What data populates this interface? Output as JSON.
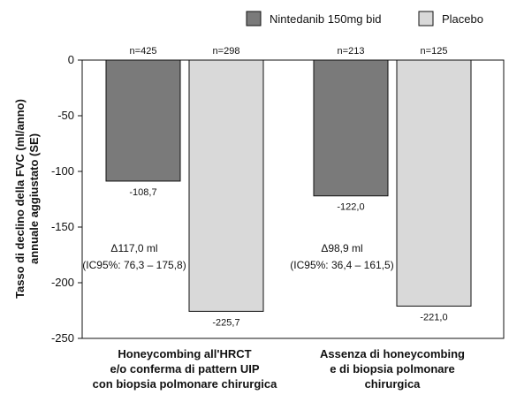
{
  "chart_data": {
    "type": "bar",
    "ylabel": "Tasso di declino della FVC (ml/anno) annuale aggiustato (SE)",
    "ylabel_lines": [
      "Tasso di declino della FVC (ml/anno)",
      "annuale aggiustato (SE)"
    ],
    "ylim": [
      -250,
      0
    ],
    "yticks": [
      0,
      -50,
      -100,
      -150,
      -200,
      -250
    ],
    "ytick_labels": [
      "0",
      "-50",
      "-100",
      "-150",
      "-200",
      "-250"
    ],
    "legend_position": "top-right",
    "series": [
      {
        "name": "Nintedanib 150mg bid",
        "color": "#7a7a7a",
        "values": [
          -108.7,
          -122.0
        ],
        "value_labels": [
          "-108,7",
          "-122,0"
        ],
        "n_labels": [
          "n=425",
          "n=213"
        ]
      },
      {
        "name": "Placebo",
        "color": "#d9d9d9",
        "values": [
          -225.7,
          -221.0
        ],
        "value_labels": [
          "-225,7",
          "-221,0"
        ],
        "n_labels": [
          "n=298",
          "n=125"
        ]
      }
    ],
    "categories": [
      {
        "lines": [
          "Honeycombing all'HRCT",
          "e/o conferma di pattern UIP",
          "con biopsia polmonare chirurgica"
        ]
      },
      {
        "lines": [
          "Assenza di honeycombing",
          "e di biopsia polmonare",
          "chirurgica"
        ]
      }
    ],
    "annotations": [
      {
        "lines": [
          "Δ117,0 ml",
          "(IC95%: 76,3 – 175,8)"
        ]
      },
      {
        "lines": [
          "Δ98,9 ml",
          "(IC95%: 36,4 – 161,5)"
        ]
      }
    ]
  }
}
